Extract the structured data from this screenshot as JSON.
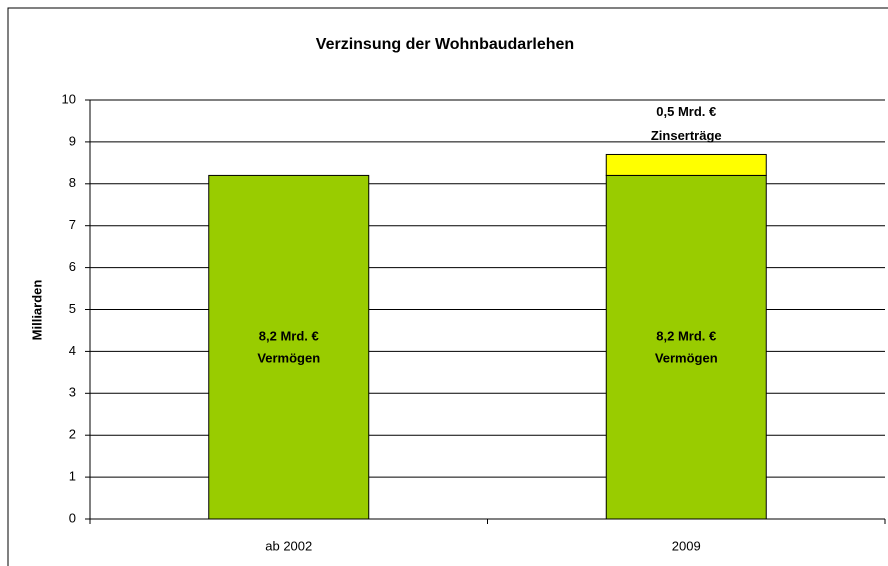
{
  "chart_data": {
    "type": "stacked_bar",
    "title": "Verzinsung der Wohnbaudarlehen",
    "y_label": "Milliarden",
    "categories": [
      "ab 2002",
      "2009"
    ],
    "series": [
      {
        "name": "Vermögen",
        "color": "#99cc00",
        "values": [
          8.2,
          8.2
        ],
        "value_labels": [
          "8,2 Mrd. €",
          "8,2 Mrd. €"
        ]
      },
      {
        "name": "Zinserträge",
        "color": "#ffff00",
        "values": [
          0,
          0.5
        ],
        "value_labels": [
          null,
          "0,5 Mrd. €"
        ]
      }
    ],
    "ylim": [
      0,
      10
    ],
    "yticks": [
      0,
      1,
      2,
      3,
      4,
      5,
      6,
      7,
      8,
      9,
      10
    ],
    "grid": true
  }
}
